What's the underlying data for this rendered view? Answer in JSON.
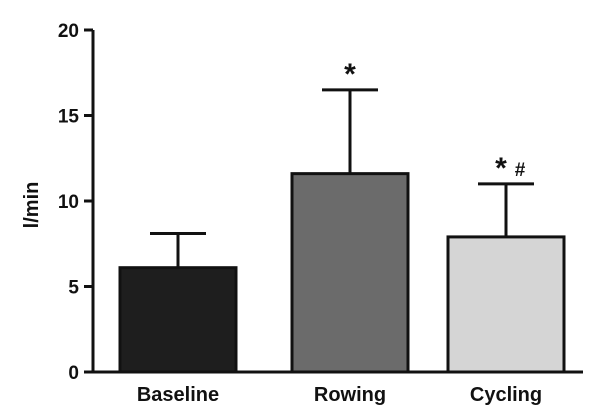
{
  "chart_data": {
    "type": "bar",
    "categories": [
      "Baseline",
      "Rowing",
      "Cycling"
    ],
    "values": [
      6.1,
      11.6,
      7.9
    ],
    "error_upper": [
      8.1,
      16.5,
      11.0
    ],
    "bar_colors": [
      "#1e1e1e",
      "#6b6b6b",
      "#d5d5d5"
    ],
    "annotations": [
      {
        "category": "Rowing",
        "star": "*",
        "hash": ""
      },
      {
        "category": "Cycling",
        "star": "*",
        "hash": "#"
      }
    ],
    "title": "",
    "xlabel": "",
    "ylabel": "l/min",
    "ylim": [
      0,
      20
    ],
    "yticks": [
      0,
      5,
      10,
      15,
      20
    ],
    "grid": false
  }
}
